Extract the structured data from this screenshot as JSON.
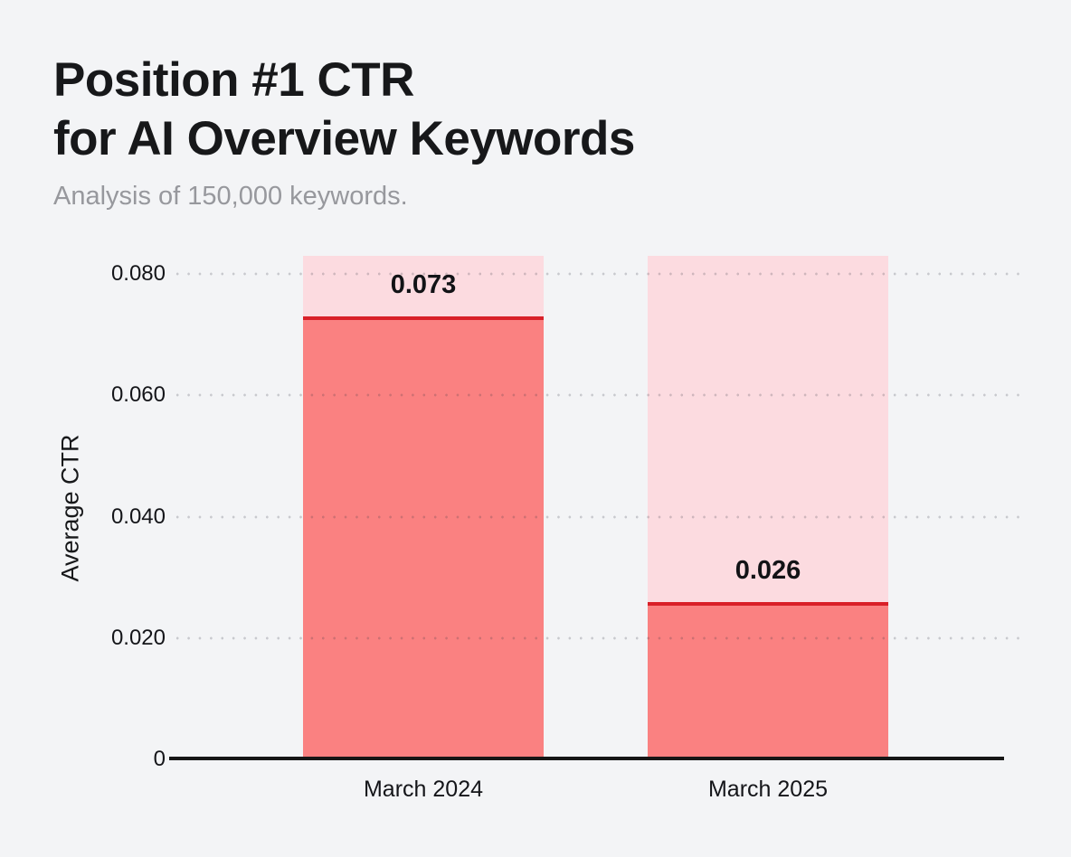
{
  "header": {
    "title_line1": "Position #1 CTR",
    "title_line2": "for AI Overview Keywords",
    "subtitle": "Analysis of 150,000 keywords."
  },
  "chart_data": {
    "type": "bar",
    "title": "Position #1 CTR for AI Overview Keywords",
    "subtitle": "Analysis of 150,000 keywords.",
    "categories": [
      "March 2024",
      "March 2025"
    ],
    "values": [
      0.073,
      0.026
    ],
    "value_labels": [
      "0.073",
      "0.026"
    ],
    "xlabel": "",
    "ylabel": "Average CTR",
    "ylim": [
      0,
      0.083
    ],
    "yticks": [
      0,
      0.02,
      0.04,
      0.06,
      0.08
    ],
    "ytick_labels": [
      "0",
      "0.020",
      "0.040",
      "0.060",
      "0.080"
    ],
    "grid": "dotted horizontal, drawn over bars",
    "legend": "none",
    "bar_style": "full-height light background column with solid fill up to value, red marker line at value top",
    "colors": {
      "page_background": "#F3F4F6",
      "bar_background": "#FCDBE0",
      "bar_fill": "#FA8181",
      "marker_line": "#D92028",
      "axis_line": "#161616",
      "grid_dot": "#C7C8CC",
      "title_text": "#17181A",
      "subtitle_text": "#97989D"
    }
  }
}
